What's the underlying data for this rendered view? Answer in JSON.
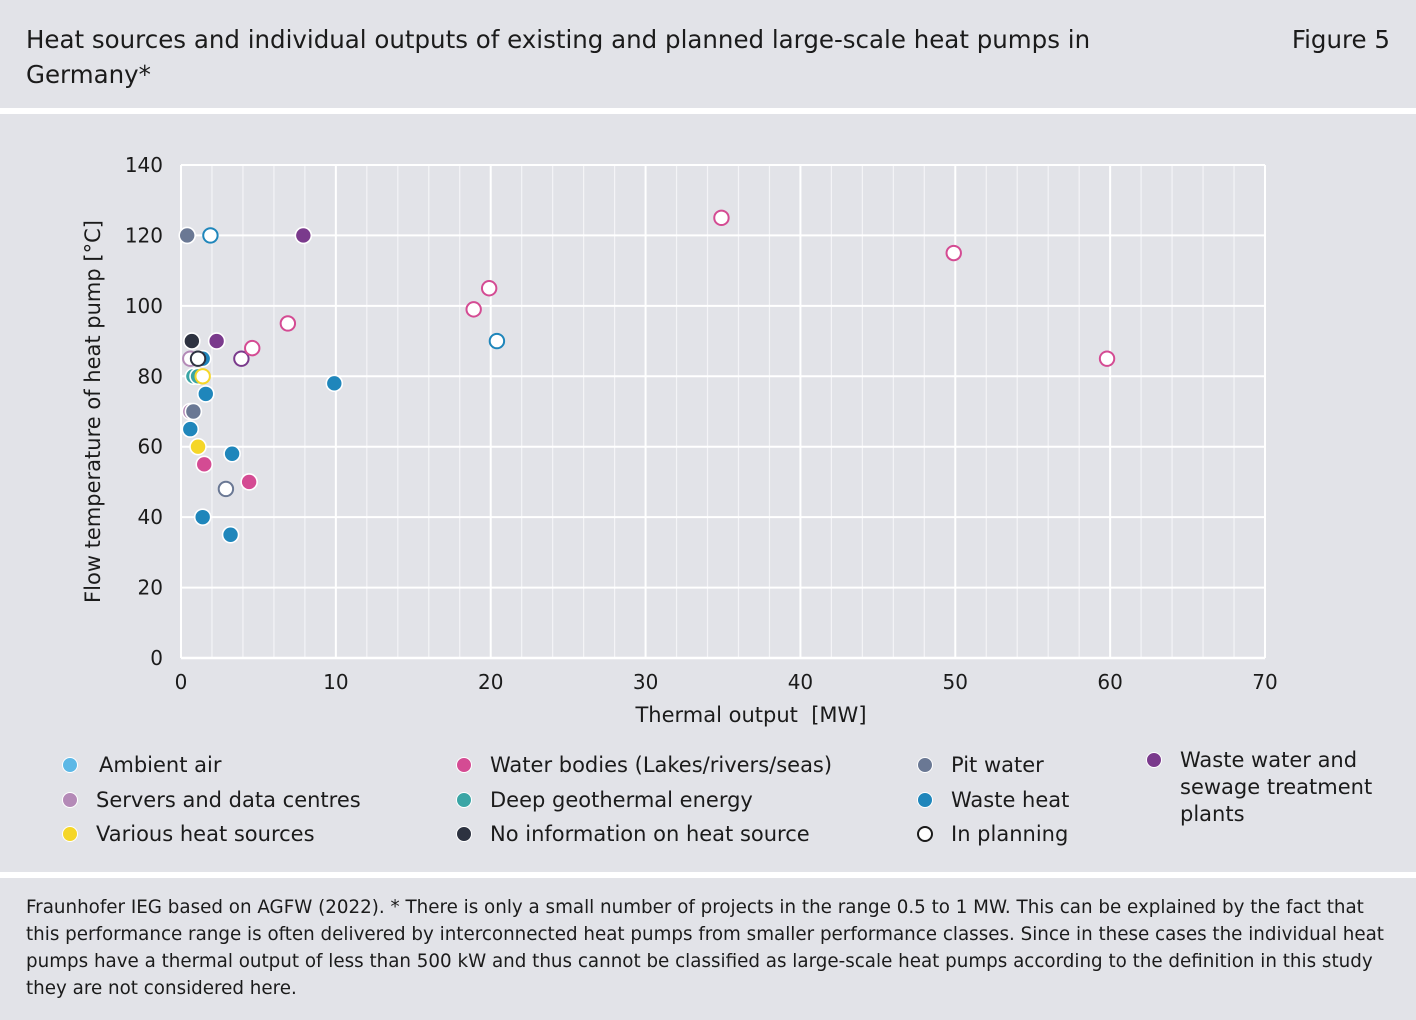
{
  "header": {
    "title": "Heat sources and individual outputs of existing and planned large-scale heat pumps in Germany*",
    "figure_label": "Figure 5"
  },
  "source_note": "Fraunhofer IEG based on AGFW (2022). * There is only a small number of projects in the range 0.5 to 1 MW. This can be explained by the fact that this performance range is often delivered by interconnected heat pumps from smaller performance classes. Since in these cases the individual heat pumps have a thermal output of less than 500 kW and thus cannot be classified as large-scale heat pumps according to the definition in this study they are not considered here.",
  "chart_data": {
    "type": "scatter",
    "title": "Heat sources and individual outputs of existing and planned large-scale heat pumps in Germany*",
    "xlabel": "Thermal output  [MW]",
    "ylabel": "Flow temperature of heat pump [°C]",
    "xlim": [
      0,
      70
    ],
    "ylim": [
      0,
      140
    ],
    "xticks": [
      0,
      10,
      20,
      30,
      40,
      50,
      60,
      70
    ],
    "yticks": [
      0,
      20,
      40,
      60,
      80,
      100,
      120,
      140
    ],
    "x_minor_step": 2,
    "grid": true,
    "legend_position": "bottom",
    "categories": [
      {
        "key": "ambient_air",
        "label": "Ambient air",
        "color": "#5db8e6"
      },
      {
        "key": "servers",
        "label": "Servers and data centres",
        "color": "#b48ab7"
      },
      {
        "key": "various",
        "label": "Various heat sources",
        "color": "#f5d628"
      },
      {
        "key": "water_bodies",
        "label": "Water bodies (Lakes/rivers/seas)",
        "color": "#d44b93"
      },
      {
        "key": "deep_geothermal",
        "label": "Deep geothermal energy",
        "color": "#3aa5a5"
      },
      {
        "key": "no_info",
        "label": "No information on heat source",
        "color": "#2d3240"
      },
      {
        "key": "pit_water",
        "label": "Pit water",
        "color": "#6a7894"
      },
      {
        "key": "waste_heat",
        "label": "Waste heat",
        "color": "#1f86bb"
      },
      {
        "key": "in_planning",
        "label": "In planning",
        "color": "#ffffff"
      },
      {
        "key": "waste_water",
        "label": "Waste water and\nsewage treatment\nplants",
        "color": "#7a3a8c"
      }
    ],
    "points": [
      {
        "x": 0.4,
        "y": 120,
        "category": "pit_water",
        "planned": false
      },
      {
        "x": 1.9,
        "y": 120,
        "category": "waste_heat",
        "planned": true
      },
      {
        "x": 7.9,
        "y": 120,
        "category": "waste_water",
        "planned": false
      },
      {
        "x": 0.7,
        "y": 90,
        "category": "no_info",
        "planned": false
      },
      {
        "x": 2.3,
        "y": 90,
        "category": "waste_water",
        "planned": false
      },
      {
        "x": 0.6,
        "y": 85,
        "category": "servers",
        "planned": true
      },
      {
        "x": 1.4,
        "y": 85,
        "category": "waste_heat",
        "planned": false
      },
      {
        "x": 1.1,
        "y": 85,
        "category": "no_info",
        "planned": true
      },
      {
        "x": 3.9,
        "y": 85,
        "category": "waste_water",
        "planned": true
      },
      {
        "x": 4.6,
        "y": 88,
        "category": "water_bodies",
        "planned": true
      },
      {
        "x": 6.9,
        "y": 95,
        "category": "water_bodies",
        "planned": true
      },
      {
        "x": 0.8,
        "y": 80,
        "category": "deep_geothermal",
        "planned": false
      },
      {
        "x": 1.1,
        "y": 80,
        "category": "deep_geothermal",
        "planned": false
      },
      {
        "x": 1.4,
        "y": 80,
        "category": "various",
        "planned": true
      },
      {
        "x": 1.6,
        "y": 75,
        "category": "waste_heat",
        "planned": false
      },
      {
        "x": 0.6,
        "y": 70,
        "category": "servers",
        "planned": false
      },
      {
        "x": 0.8,
        "y": 70,
        "category": "pit_water",
        "planned": false
      },
      {
        "x": 0.6,
        "y": 65,
        "category": "waste_heat",
        "planned": false
      },
      {
        "x": 1.1,
        "y": 60,
        "category": "various",
        "planned": false
      },
      {
        "x": 1.5,
        "y": 55,
        "category": "water_bodies",
        "planned": false
      },
      {
        "x": 3.3,
        "y": 58,
        "category": "waste_heat",
        "planned": false
      },
      {
        "x": 4.4,
        "y": 50,
        "category": "water_bodies",
        "planned": false
      },
      {
        "x": 2.9,
        "y": 48,
        "category": "pit_water",
        "planned": true
      },
      {
        "x": 1.4,
        "y": 40,
        "category": "waste_heat",
        "planned": false
      },
      {
        "x": 3.2,
        "y": 35,
        "category": "waste_heat",
        "planned": false
      },
      {
        "x": 9.9,
        "y": 78,
        "category": "waste_heat",
        "planned": false
      },
      {
        "x": 18.9,
        "y": 99,
        "category": "water_bodies",
        "planned": true
      },
      {
        "x": 19.9,
        "y": 105,
        "category": "water_bodies",
        "planned": true
      },
      {
        "x": 20.4,
        "y": 90,
        "category": "waste_heat",
        "planned": true
      },
      {
        "x": 34.9,
        "y": 125,
        "category": "water_bodies",
        "planned": true
      },
      {
        "x": 49.9,
        "y": 115,
        "category": "water_bodies",
        "planned": true
      },
      {
        "x": 59.8,
        "y": 85,
        "category": "water_bodies",
        "planned": true
      }
    ]
  }
}
